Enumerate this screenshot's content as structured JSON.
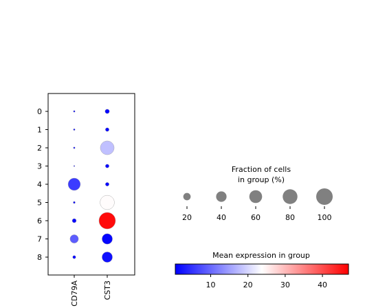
{
  "chart_data": {
    "type": "dotplot",
    "groups": [
      "0",
      "1",
      "2",
      "3",
      "4",
      "5",
      "6",
      "7",
      "8"
    ],
    "genes": [
      "CD79A",
      "CST3"
    ],
    "points": [
      {
        "group": "0",
        "gene": "CD79A",
        "fraction": 1,
        "expression": 1
      },
      {
        "group": "1",
        "gene": "CD79A",
        "fraction": 1,
        "expression": 1
      },
      {
        "group": "2",
        "gene": "CD79A",
        "fraction": 1,
        "expression": 1
      },
      {
        "group": "3",
        "gene": "CD79A",
        "fraction": 0.5,
        "expression": 1
      },
      {
        "group": "4",
        "gene": "CD79A",
        "fraction": 55,
        "expression": 6
      },
      {
        "group": "5",
        "gene": "CD79A",
        "fraction": 1.5,
        "expression": 1
      },
      {
        "group": "6",
        "gene": "CD79A",
        "fraction": 6,
        "expression": 1
      },
      {
        "group": "7",
        "gene": "CD79A",
        "fraction": 26,
        "expression": 9
      },
      {
        "group": "8",
        "gene": "CD79A",
        "fraction": 3.5,
        "expression": 1
      },
      {
        "group": "0",
        "gene": "CST3",
        "fraction": 7,
        "expression": 1
      },
      {
        "group": "1",
        "gene": "CST3",
        "fraction": 5,
        "expression": 1
      },
      {
        "group": "2",
        "gene": "CST3",
        "fraction": 70,
        "expression": 18
      },
      {
        "group": "3",
        "gene": "CST3",
        "fraction": 5,
        "expression": 1
      },
      {
        "group": "4",
        "gene": "CST3",
        "fraction": 5,
        "expression": 1
      },
      {
        "group": "5",
        "gene": "CST3",
        "fraction": 75,
        "expression": 24
      },
      {
        "group": "6",
        "gene": "CST3",
        "fraction": 100,
        "expression": 46
      },
      {
        "group": "7",
        "gene": "CST3",
        "fraction": 40,
        "expression": 1
      },
      {
        "group": "8",
        "gene": "CST3",
        "fraction": 40,
        "expression": 2
      }
    ],
    "size_legend": {
      "title_line1": "Fraction of cells",
      "title_line2": "in group (%)",
      "values": [
        20,
        40,
        60,
        80,
        100
      ],
      "labels": [
        "20",
        "40",
        "60",
        "80",
        "100"
      ],
      "color": "#808080"
    },
    "colorbar": {
      "title": "Mean expression in group",
      "range": [
        0.5,
        47
      ],
      "ticks": [
        10,
        20,
        30,
        40
      ],
      "tick_labels": [
        "10",
        "20",
        "30",
        "40"
      ],
      "colormap": "bwr",
      "colors": [
        "#0000ff",
        "#ffffff",
        "#ff0000"
      ]
    }
  }
}
